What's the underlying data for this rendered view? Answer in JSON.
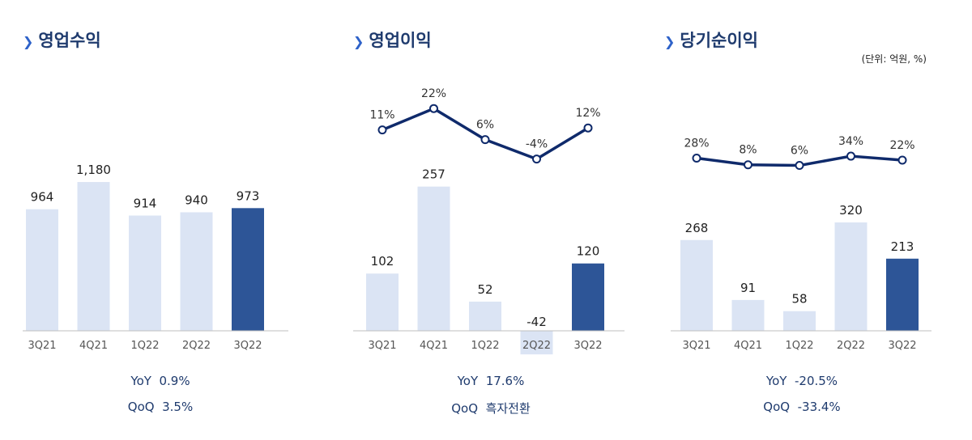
{
  "unit_note": "(단위: 억원, %)",
  "title_icon": "double-chevron-icon",
  "colors": {
    "light_bar": "#dbe4f4",
    "highlight_bar": "#2d5597",
    "line": "#0f2a6b",
    "axis": "#bfbfbf",
    "summary_text": "#1f3b6e",
    "title_text": "#1f3b6e"
  },
  "panels": [
    {
      "title": "영업수익",
      "yoy_label": "YoY",
      "yoy_value": "0.9%",
      "qoq_label": "QoQ",
      "qoq_value": "3.5%"
    },
    {
      "title": "영업이익",
      "yoy_label": "YoY",
      "yoy_value": "17.6%",
      "qoq_label": "QoQ",
      "qoq_value": "흑자전환"
    },
    {
      "title": "당기순이익",
      "yoy_label": "YoY",
      "yoy_value": "-20.5%",
      "qoq_label": "QoQ",
      "qoq_value": "-33.4%"
    }
  ],
  "chart_data": [
    {
      "type": "bar",
      "title": "영업수익",
      "categories": [
        "3Q21",
        "4Q21",
        "1Q22",
        "2Q22",
        "3Q22"
      ],
      "values": [
        964,
        1180,
        914,
        940,
        973
      ],
      "value_labels": [
        "964",
        "1,180",
        "914",
        "940",
        "973"
      ],
      "highlight_index": 4,
      "ylim": [
        0,
        1200
      ]
    },
    {
      "type": "bar+line",
      "title": "영업이익",
      "categories": [
        "3Q21",
        "4Q21",
        "1Q22",
        "2Q22",
        "3Q22"
      ],
      "values": [
        102,
        257,
        52,
        -42,
        120
      ],
      "value_labels": [
        "102",
        "257",
        "52",
        "-42",
        "120"
      ],
      "highlight_index": 4,
      "ylim": [
        -42,
        300
      ],
      "line": {
        "values": [
          11,
          22,
          6,
          -4,
          12
        ],
        "labels": [
          "11%",
          "22%",
          "6%",
          "-4%",
          "12%"
        ],
        "ylim": [
          -10,
          30
        ]
      }
    },
    {
      "type": "bar+line",
      "title": "당기순이익",
      "categories": [
        "3Q21",
        "4Q21",
        "1Q22",
        "2Q22",
        "3Q22"
      ],
      "values": [
        268,
        91,
        58,
        320,
        213
      ],
      "value_labels": [
        "268",
        "91",
        "58",
        "320",
        "213"
      ],
      "highlight_index": 4,
      "ylim": [
        0,
        400
      ],
      "line": {
        "values": [
          28,
          8,
          6,
          34,
          22
        ],
        "labels": [
          "28%",
          "8%",
          "6%",
          "34%",
          "22%"
        ],
        "ylim": [
          0,
          40
        ]
      }
    }
  ]
}
